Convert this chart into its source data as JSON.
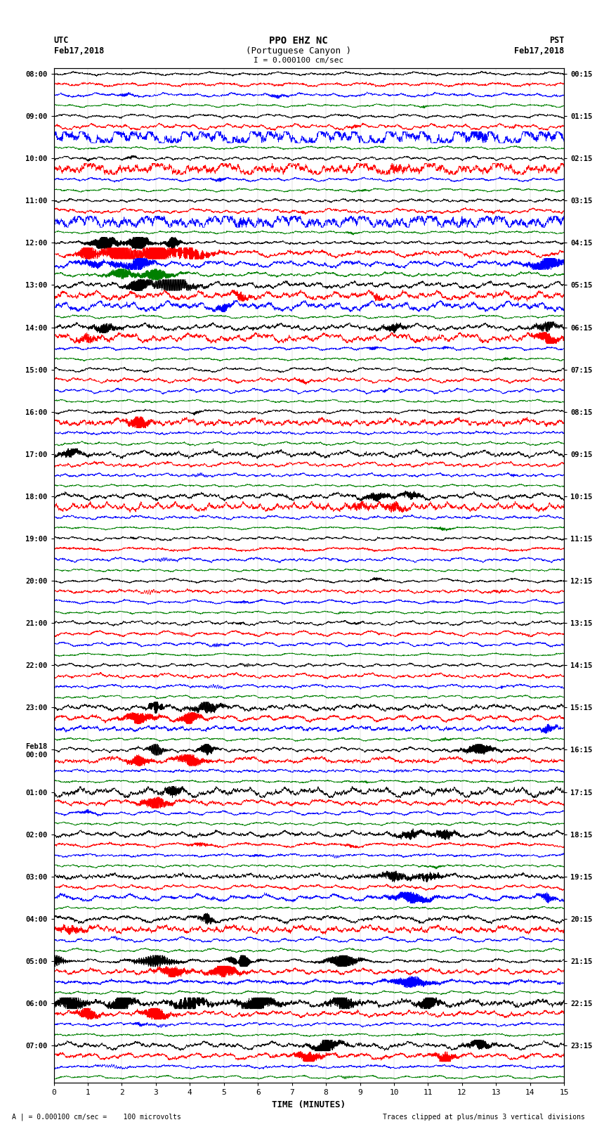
{
  "title_line1": "PPO EHZ NC",
  "title_line2": "(Portuguese Canyon )",
  "title_line3": "I = 0.000100 cm/sec",
  "label_left_top1": "UTC",
  "label_left_top2": "Feb17,2018",
  "label_right_top1": "PST",
  "label_right_top2": "Feb17,2018",
  "xlabel": "TIME (MINUTES)",
  "footer_left": "A | = 0.000100 cm/sec =    100 microvolts",
  "footer_right": "Traces clipped at plus/minus 3 vertical divisions",
  "left_times": [
    "08:00",
    "09:00",
    "10:00",
    "11:00",
    "12:00",
    "13:00",
    "14:00",
    "15:00",
    "16:00",
    "17:00",
    "18:00",
    "19:00",
    "20:00",
    "21:00",
    "22:00",
    "23:00",
    "Feb18\n00:00",
    "01:00",
    "02:00",
    "03:00",
    "04:00",
    "05:00",
    "06:00",
    "07:00"
  ],
  "right_times": [
    "00:15",
    "01:15",
    "02:15",
    "03:15",
    "04:15",
    "05:15",
    "06:15",
    "07:15",
    "08:15",
    "09:15",
    "10:15",
    "11:15",
    "12:15",
    "13:15",
    "14:15",
    "15:15",
    "16:15",
    "17:15",
    "18:15",
    "19:15",
    "20:15",
    "21:15",
    "22:15",
    "23:15"
  ],
  "n_rows": 96,
  "n_hours": 24,
  "colors_cycle": [
    "black",
    "red",
    "blue",
    "green"
  ],
  "bg_color": "white",
  "xmin": 0,
  "xmax": 15,
  "n_pts": 3000,
  "seed": 42,
  "trace_scale": 0.42,
  "noise_base": 0.15,
  "lw": 0.5
}
